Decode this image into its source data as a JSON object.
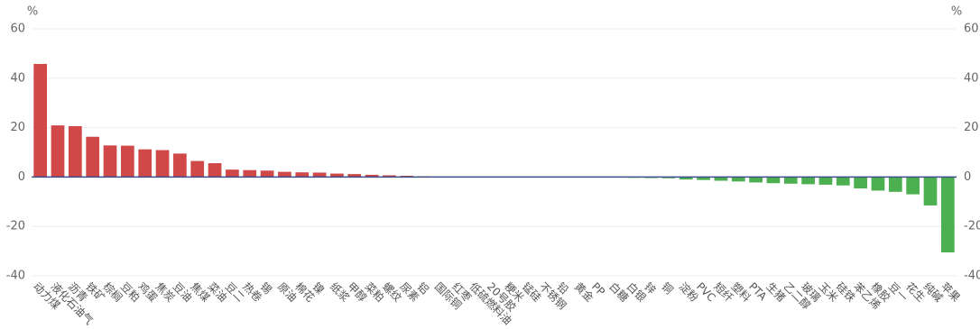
{
  "chart_data": {
    "type": "bar",
    "y_label": "%",
    "y2_label": "%",
    "categories": [
      "动力煤",
      "液化石油气",
      "沥青",
      "铁矿",
      "棕榈",
      "豆粕",
      "鸡蛋",
      "焦炭",
      "豆油",
      "焦煤",
      "菜油",
      "豆二",
      "热卷",
      "锡",
      "原油",
      "棉花",
      "镍",
      "纸浆",
      "甲醇",
      "菜粕",
      "螺纹",
      "尿素",
      "铝",
      "国际铜",
      "红枣",
      "低硫燃料油",
      "20号胶",
      "粳米",
      "锰硅",
      "不锈钢",
      "铅",
      "黄金",
      "PP",
      "白糖",
      "白银",
      "锌",
      "铜",
      "淀粉",
      "PVC",
      "短纤",
      "塑料",
      "PTA",
      "生猪",
      "乙二醇",
      "玻璃",
      "玉米",
      "硅铁",
      "苯乙烯",
      "橡胶",
      "豆一",
      "花生",
      "纯碱",
      "苹果"
    ],
    "values": [
      45.8,
      20.9,
      20.6,
      16.3,
      12.8,
      12.7,
      11.2,
      10.9,
      9.5,
      6.5,
      5.6,
      3,
      2.8,
      2.6,
      2.1,
      1.9,
      1.8,
      1.4,
      1.2,
      0.9,
      0.7,
      0.5,
      0.3,
      0.1,
      0.1,
      0.1,
      0.05,
      0,
      0,
      0,
      0,
      -0.1,
      -0.1,
      -0.2,
      -0.3,
      -0.4,
      -0.5,
      -1,
      -1.2,
      -1.5,
      -1.8,
      -2.2,
      -2.5,
      -2.7,
      -2.9,
      -3.1,
      -3.4,
      -4.6,
      -5.5,
      -6,
      -7,
      -11.5,
      -30.5
    ],
    "positive_color": "#d04848",
    "negative_color": "#4caf50",
    "ylim": [
      -40,
      60
    ],
    "yticks": [
      -40,
      -20,
      0,
      20,
      40,
      60
    ],
    "y2lim": [
      -40,
      60
    ],
    "y2ticks": [
      -40,
      -20,
      0,
      20,
      40,
      60
    ],
    "grid": true
  }
}
